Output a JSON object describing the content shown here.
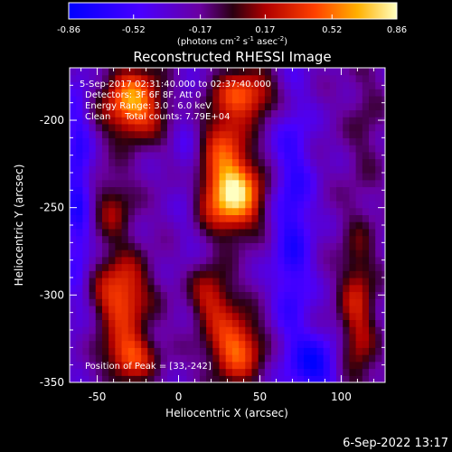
{
  "chart_data": {
    "type": "heatmap",
    "title": "Reconstructed RHESSI Image",
    "xlabel": "Heliocentric X (arcsec)",
    "ylabel": "Heliocentric Y (arcsec)",
    "xlim": [
      -67,
      127
    ],
    "ylim": [
      -350,
      -170
    ],
    "xticks": [
      -50,
      0,
      50,
      100
    ],
    "xtick_labels": [
      "-50",
      "0",
      "50",
      "100"
    ],
    "yticks": [
      -200,
      -250,
      -300,
      -350
    ],
    "ytick_labels": [
      "-200",
      "-250",
      "-300",
      "-350"
    ],
    "colorbar": {
      "min": -0.86,
      "max": 0.86,
      "ticks": [
        -0.86,
        -0.52,
        -0.17,
        0.17,
        0.52,
        0.86
      ],
      "tick_labels": [
        "-0.86",
        "-0.52",
        "-0.17",
        "0.17",
        "0.52",
        "0.86"
      ],
      "unit_label_parts": [
        "(photons cm",
        "-2",
        " s",
        "-1",
        " asec",
        "-2",
        ")"
      ]
    },
    "annotations": [
      "5-Sep-2017 02:31:40.000 to 02:37:40.000",
      "Detectors: 3F 6F 8F, Att 0",
      "Energy Range: 3.0 - 6.0 keV",
      "Clean     Total counts: 7.79E+04"
    ],
    "peak_text": "Position of Peak = [33,-242]",
    "peak": [
      33,
      -242
    ],
    "sources": [
      {
        "x": 33,
        "y": -242,
        "amp": 1.25,
        "sx": 13,
        "sy": 15
      },
      {
        "x": 28,
        "y": -210,
        "amp": 0.55,
        "sx": 10,
        "sy": 14
      },
      {
        "x": 42,
        "y": -185,
        "amp": 0.75,
        "sx": 14,
        "sy": 10
      },
      {
        "x": 20,
        "y": -300,
        "amp": 0.55,
        "sx": 10,
        "sy": 12
      },
      {
        "x": 35,
        "y": -330,
        "amp": 0.85,
        "sx": 12,
        "sy": 14
      },
      {
        "x": -28,
        "y": -190,
        "amp": 1.0,
        "sx": 13,
        "sy": 14
      },
      {
        "x": -40,
        "y": -250,
        "amp": 0.4,
        "sx": 9,
        "sy": 14
      },
      {
        "x": -35,
        "y": -300,
        "amp": 0.8,
        "sx": 12,
        "sy": 16
      },
      {
        "x": -30,
        "y": -335,
        "amp": 0.75,
        "sx": 11,
        "sy": 10
      },
      {
        "x": 110,
        "y": -310,
        "amp": 0.55,
        "sx": 8,
        "sy": 35
      },
      {
        "x": 115,
        "y": -200,
        "amp": 0.2,
        "sx": 8,
        "sy": 25
      },
      {
        "x": 70,
        "y": -260,
        "amp": -0.5,
        "sx": 9,
        "sy": 60
      },
      {
        "x": 85,
        "y": -340,
        "amp": -0.6,
        "sx": 10,
        "sy": 12
      },
      {
        "x": -62,
        "y": -240,
        "amp": -0.5,
        "sx": 6,
        "sy": 50
      },
      {
        "x": 5,
        "y": -220,
        "amp": -0.2,
        "sx": 6,
        "sy": 45
      }
    ],
    "grid": false
  },
  "footer": {
    "datetime": "6-Sep-2022 13:17"
  }
}
